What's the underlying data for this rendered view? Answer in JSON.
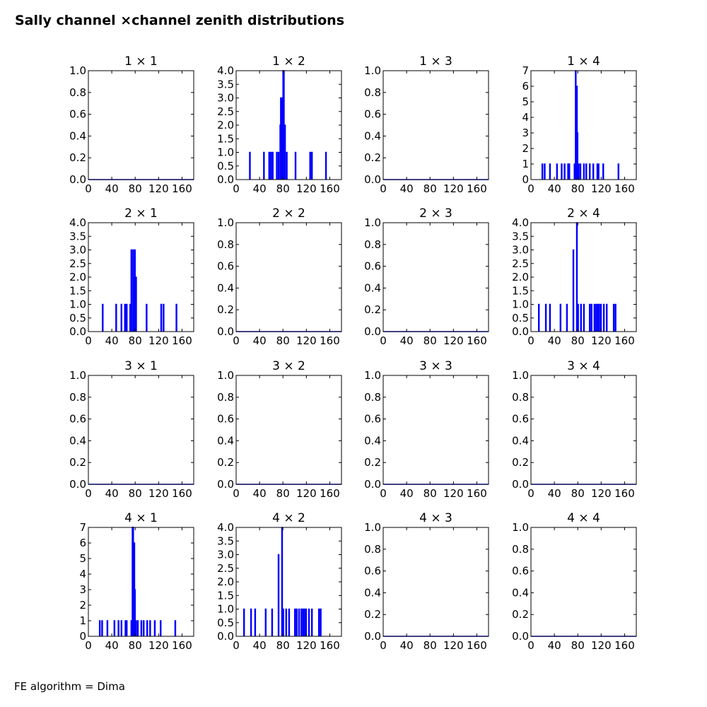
{
  "figure": {
    "title": "Sally channel ×channel zenith distributions",
    "footer": "FE algorithm = Dima"
  },
  "chart_data": [
    {
      "type": "line",
      "title": "1  × 1",
      "xlim": [
        0,
        180
      ],
      "xticks": [
        0,
        40,
        80,
        120,
        160
      ],
      "ylim": [
        0,
        1
      ],
      "yticks": [
        "0.0",
        "0.2",
        "0.4",
        "0.6",
        "0.8",
        "1.0"
      ],
      "bars": []
    },
    {
      "type": "line",
      "title": "1  × 2",
      "xlim": [
        0,
        180
      ],
      "xticks": [
        0,
        40,
        80,
        120,
        160
      ],
      "ylim": [
        0,
        4
      ],
      "yticks": [
        "0.0",
        "0.5",
        "1.0",
        "1.5",
        "2.0",
        "2.5",
        "3.0",
        "3.5",
        "4.0"
      ],
      "bars": [
        [
          24,
          1
        ],
        [
          48,
          1
        ],
        [
          57,
          1
        ],
        [
          60,
          1
        ],
        [
          63,
          1
        ],
        [
          70,
          1
        ],
        [
          73,
          1
        ],
        [
          76,
          2
        ],
        [
          77,
          3
        ],
        [
          79,
          3
        ],
        [
          81,
          4
        ],
        [
          82,
          4
        ],
        [
          84,
          2
        ],
        [
          87,
          1
        ],
        [
          102,
          1
        ],
        [
          127,
          1
        ],
        [
          130,
          1
        ],
        [
          154,
          1
        ]
      ]
    },
    {
      "type": "line",
      "title": "1  × 3",
      "xlim": [
        0,
        180
      ],
      "xticks": [
        0,
        40,
        80,
        120,
        160
      ],
      "ylim": [
        0,
        1
      ],
      "yticks": [
        "0.0",
        "0.2",
        "0.4",
        "0.6",
        "0.8",
        "1.0"
      ],
      "bars": []
    },
    {
      "type": "line",
      "title": "1  × 4",
      "xlim": [
        0,
        180
      ],
      "xticks": [
        0,
        40,
        80,
        120,
        160
      ],
      "ylim": [
        0,
        7
      ],
      "yticks": [
        "0",
        "1",
        "2",
        "3",
        "4",
        "5",
        "6",
        "7"
      ],
      "bars": [
        [
          20,
          1
        ],
        [
          24,
          1
        ],
        [
          33,
          1
        ],
        [
          45,
          1
        ],
        [
          53,
          1
        ],
        [
          58,
          1
        ],
        [
          64,
          1
        ],
        [
          66,
          1
        ],
        [
          75,
          1
        ],
        [
          77,
          7
        ],
        [
          79,
          6
        ],
        [
          80,
          3
        ],
        [
          82,
          1
        ],
        [
          85,
          1
        ],
        [
          91,
          1
        ],
        [
          95,
          1
        ],
        [
          101,
          1
        ],
        [
          107,
          1
        ],
        [
          114,
          1
        ],
        [
          116,
          1
        ],
        [
          124,
          1
        ],
        [
          150,
          1
        ]
      ]
    },
    {
      "type": "line",
      "title": "2  × 1",
      "xlim": [
        0,
        180
      ],
      "xticks": [
        0,
        40,
        80,
        120,
        160
      ],
      "ylim": [
        0,
        4
      ],
      "yticks": [
        "0.0",
        "0.5",
        "1.0",
        "1.5",
        "2.0",
        "2.5",
        "3.0",
        "3.5",
        "4.0"
      ],
      "bars": [
        [
          25,
          1
        ],
        [
          48,
          1
        ],
        [
          57,
          1
        ],
        [
          63,
          1
        ],
        [
          66,
          1
        ],
        [
          72,
          1
        ],
        [
          74,
          3
        ],
        [
          77,
          3
        ],
        [
          79,
          2
        ],
        [
          80,
          3
        ],
        [
          82,
          2
        ],
        [
          100,
          1
        ],
        [
          125,
          1
        ],
        [
          129,
          1
        ],
        [
          151,
          1
        ]
      ]
    },
    {
      "type": "line",
      "title": "2  × 2",
      "xlim": [
        0,
        180
      ],
      "xticks": [
        0,
        40,
        80,
        120,
        160
      ],
      "ylim": [
        0,
        1
      ],
      "yticks": [
        "0.0",
        "0.2",
        "0.4",
        "0.6",
        "0.8",
        "1.0"
      ],
      "bars": []
    },
    {
      "type": "line",
      "title": "2  × 3",
      "xlim": [
        0,
        180
      ],
      "xticks": [
        0,
        40,
        80,
        120,
        160
      ],
      "ylim": [
        0,
        1
      ],
      "yticks": [
        "0.0",
        "0.2",
        "0.4",
        "0.6",
        "0.8",
        "1.0"
      ],
      "bars": []
    },
    {
      "type": "line",
      "title": "2  × 4",
      "xlim": [
        0,
        180
      ],
      "xticks": [
        0,
        40,
        80,
        120,
        160
      ],
      "ylim": [
        0,
        4
      ],
      "yticks": [
        "0.0",
        "0.5",
        "1.0",
        "1.5",
        "2.0",
        "2.5",
        "3.0",
        "3.5",
        "4.0"
      ],
      "bars": [
        [
          14,
          1
        ],
        [
          26,
          1
        ],
        [
          33,
          1
        ],
        [
          51,
          1
        ],
        [
          62,
          1
        ],
        [
          73,
          3
        ],
        [
          79,
          4
        ],
        [
          81,
          1
        ],
        [
          86,
          1
        ],
        [
          91,
          1
        ],
        [
          101,
          1
        ],
        [
          104,
          1
        ],
        [
          109,
          1
        ],
        [
          112,
          1
        ],
        [
          115,
          1
        ],
        [
          117,
          1
        ],
        [
          120,
          1
        ],
        [
          125,
          1
        ],
        [
          130,
          1
        ],
        [
          142,
          1
        ],
        [
          145,
          1
        ]
      ]
    },
    {
      "type": "line",
      "title": "3  × 1",
      "xlim": [
        0,
        180
      ],
      "xticks": [
        0,
        40,
        80,
        120,
        160
      ],
      "ylim": [
        0,
        1
      ],
      "yticks": [
        "0.0",
        "0.2",
        "0.4",
        "0.6",
        "0.8",
        "1.0"
      ],
      "bars": []
    },
    {
      "type": "line",
      "title": "3  × 2",
      "xlim": [
        0,
        180
      ],
      "xticks": [
        0,
        40,
        80,
        120,
        160
      ],
      "ylim": [
        0,
        1
      ],
      "yticks": [
        "0.0",
        "0.2",
        "0.4",
        "0.6",
        "0.8",
        "1.0"
      ],
      "bars": []
    },
    {
      "type": "line",
      "title": "3  × 3",
      "xlim": [
        0,
        180
      ],
      "xticks": [
        0,
        40,
        80,
        120,
        160
      ],
      "ylim": [
        0,
        1
      ],
      "yticks": [
        "0.0",
        "0.2",
        "0.4",
        "0.6",
        "0.8",
        "1.0"
      ],
      "bars": []
    },
    {
      "type": "line",
      "title": "3  × 4",
      "xlim": [
        0,
        180
      ],
      "xticks": [
        0,
        40,
        80,
        120,
        160
      ],
      "ylim": [
        0,
        1
      ],
      "yticks": [
        "0.0",
        "0.2",
        "0.4",
        "0.6",
        "0.8",
        "1.0"
      ],
      "bars": []
    },
    {
      "type": "line",
      "title": "4  × 1",
      "xlim": [
        0,
        180
      ],
      "xticks": [
        0,
        40,
        80,
        120,
        160
      ],
      "ylim": [
        0,
        7
      ],
      "yticks": [
        "0",
        "1",
        "2",
        "3",
        "4",
        "5",
        "6",
        "7"
      ],
      "bars": [
        [
          20,
          1
        ],
        [
          24,
          1
        ],
        [
          33,
          1
        ],
        [
          45,
          1
        ],
        [
          52,
          1
        ],
        [
          57,
          1
        ],
        [
          64,
          1
        ],
        [
          66,
          1
        ],
        [
          74,
          1
        ],
        [
          76,
          7
        ],
        [
          77,
          7
        ],
        [
          79,
          6
        ],
        [
          80,
          3
        ],
        [
          82,
          1
        ],
        [
          85,
          1
        ],
        [
          91,
          1
        ],
        [
          95,
          1
        ],
        [
          101,
          1
        ],
        [
          106,
          1
        ],
        [
          114,
          1
        ],
        [
          124,
          1
        ],
        [
          149,
          1
        ]
      ]
    },
    {
      "type": "line",
      "title": "4  × 2",
      "xlim": [
        0,
        180
      ],
      "xticks": [
        0,
        40,
        80,
        120,
        160
      ],
      "ylim": [
        0,
        4
      ],
      "yticks": [
        "0.0",
        "0.5",
        "1.0",
        "1.5",
        "2.0",
        "2.5",
        "3.0",
        "3.5",
        "4.0"
      ],
      "bars": [
        [
          14,
          1
        ],
        [
          26,
          1
        ],
        [
          33,
          1
        ],
        [
          51,
          1
        ],
        [
          62,
          1
        ],
        [
          73,
          3
        ],
        [
          79,
          4
        ],
        [
          81,
          1
        ],
        [
          86,
          1
        ],
        [
          91,
          1
        ],
        [
          101,
          1
        ],
        [
          104,
          1
        ],
        [
          108,
          1
        ],
        [
          112,
          1
        ],
        [
          115,
          1
        ],
        [
          118,
          1
        ],
        [
          120,
          1
        ],
        [
          125,
          1
        ],
        [
          130,
          1
        ],
        [
          142,
          1
        ],
        [
          145,
          1
        ]
      ]
    },
    {
      "type": "line",
      "title": "4  × 3",
      "xlim": [
        0,
        180
      ],
      "xticks": [
        0,
        40,
        80,
        120,
        160
      ],
      "ylim": [
        0,
        1
      ],
      "yticks": [
        "0.0",
        "0.2",
        "0.4",
        "0.6",
        "0.8",
        "1.0"
      ],
      "bars": []
    },
    {
      "type": "line",
      "title": "4  × 4",
      "xlim": [
        0,
        180
      ],
      "xticks": [
        0,
        40,
        80,
        120,
        160
      ],
      "ylim": [
        0,
        1
      ],
      "yticks": [
        "0.0",
        "0.2",
        "0.4",
        "0.6",
        "0.8",
        "1.0"
      ],
      "bars": []
    }
  ],
  "style": {
    "line_color": "#0000ff",
    "axis_color": "#000000"
  }
}
